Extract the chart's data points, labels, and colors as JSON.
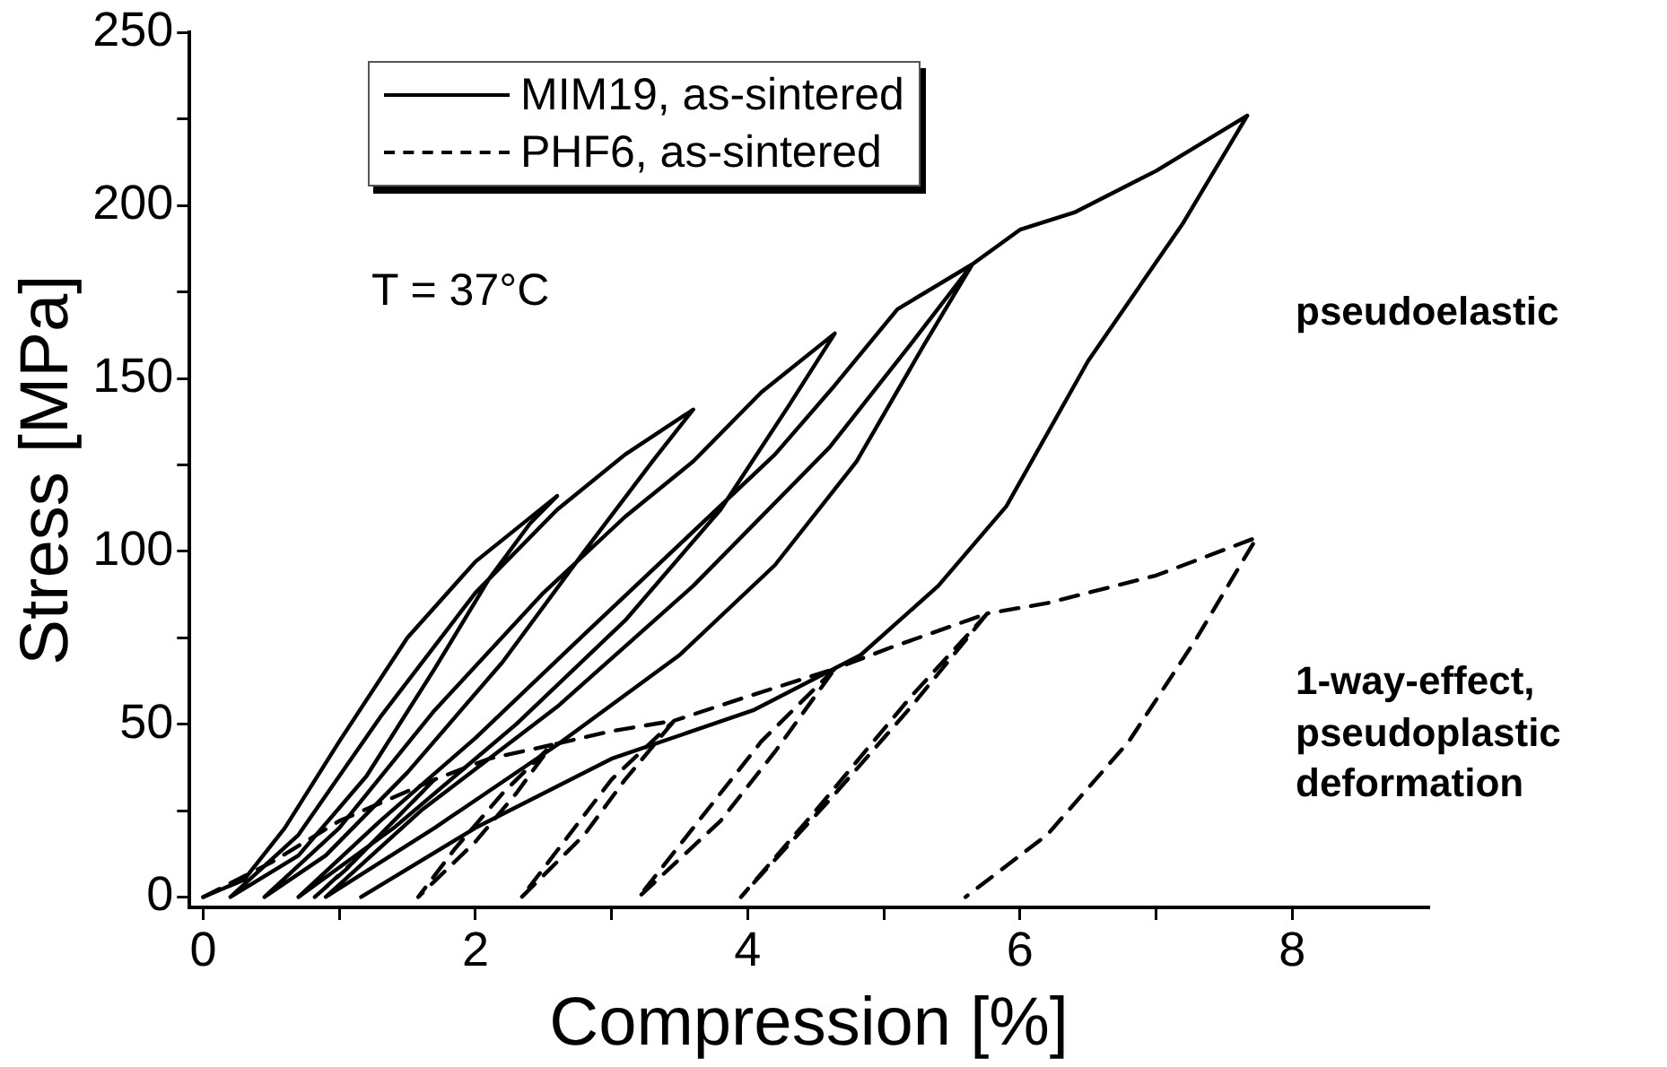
{
  "chart_data": {
    "type": "line",
    "xlabel": "Compression [%]",
    "ylabel": "Stress [MPa]",
    "xlim": [
      -0.1,
      9
    ],
    "xticks": [
      0,
      {
        "value": 1,
        "label": null
      },
      2,
      {
        "value": 3,
        "label": null
      },
      4,
      {
        "value": 5,
        "label": null
      },
      6,
      {
        "value": 7,
        "label": null
      },
      8
    ],
    "ylim": [
      -3,
      250
    ],
    "yticks": [
      0,
      {
        "value": 25,
        "label": null
      },
      50,
      {
        "value": 75,
        "label": null
      },
      100,
      {
        "value": 125,
        "label": null
      },
      150,
      {
        "value": 175,
        "label": null
      },
      200,
      {
        "value": 225,
        "label": null
      },
      250
    ],
    "grid": false,
    "legend": "top left",
    "marker": "none",
    "annotations": [
      "T = 37°C",
      "pseudoelastic",
      "1-way-effect,\npseudoplastic\ndeformation"
    ],
    "series": [
      {
        "name": "MIM19, as-sintered",
        "color": "#000000",
        "line_style": "solid",
        "x": [
          0,
          0.3,
          0.6,
          1,
          1.5,
          2,
          2.6,
          2.4,
          2.1,
          1.7,
          1.2,
          0.7,
          0.2,
          0.7,
          1.3,
          2,
          2.6,
          3.1,
          3.6,
          3.3,
          2.8,
          2.2,
          1.5,
          0.9,
          0.45,
          1,
          1.7,
          2.5,
          3.1,
          3.6,
          4.1,
          4.64,
          4.3,
          3.8,
          3.1,
          2.3,
          1.4,
          0.7,
          1.3,
          2,
          2.8,
          3.5,
          4.2,
          4.64,
          5.1,
          5.65,
          5.3,
          4.8,
          4.2,
          3.5,
          2.6,
          1.7,
          0.9,
          1.6,
          2.6,
          3.6,
          4.6,
          5.2,
          5.65,
          6,
          6.4,
          7,
          7.67,
          7.2,
          6.5,
          5.9,
          5.4,
          4.83,
          4.04,
          3,
          2,
          1.16
        ],
        "values": [
          0,
          5,
          20,
          45,
          75,
          97,
          116,
          108,
          92,
          66,
          35,
          12,
          0,
          18,
          52,
          88,
          112,
          128,
          141,
          126,
          100,
          68,
          36,
          12,
          0,
          20,
          54,
          88,
          110,
          126,
          146,
          163,
          142,
          112,
          80,
          50,
          20,
          0,
          22,
          46,
          76,
          102,
          128,
          148,
          170,
          183,
          160,
          126,
          96,
          70,
          44,
          20,
          0,
          25,
          55,
          90,
          130,
          160,
          183,
          193,
          198,
          210,
          226,
          195,
          155,
          113,
          90,
          70,
          54,
          40,
          20,
          0
        ]
      },
      {
        "name": "PHF6, as-sintered",
        "color": "#000000",
        "line_style": "dashed",
        "x": [
          0,
          0.5,
          1,
          1.7,
          1.4,
          1.1,
          0.82,
          1.05,
          1.35,
          1.7,
          2.1,
          2.56,
          2.3,
          2,
          1.58,
          1.85,
          2.2,
          2.56,
          3,
          3.46,
          3.1,
          2.8,
          2.34,
          2.65,
          3,
          3.46,
          4,
          4.64,
          4.2,
          3.8,
          3.2,
          3.6,
          4.1,
          4.64,
          5.04,
          5.76,
          5.2,
          4.6,
          3.95,
          4.5,
          5.2,
          5.76,
          6.2,
          7,
          7.74,
          7.3,
          6.8,
          6.2,
          5.6
        ],
        "values": [
          0,
          10,
          22,
          34,
          22,
          10,
          0,
          8,
          20,
          34,
          40,
          44,
          30,
          16,
          0,
          14,
          30,
          44,
          48,
          51,
          34,
          18,
          0,
          16,
          34,
          51,
          58,
          66,
          42,
          22,
          0,
          20,
          45,
          66,
          72,
          82,
          55,
          28,
          0,
          25,
          58,
          82,
          85,
          93,
          104,
          75,
          45,
          18,
          0
        ]
      }
    ]
  }
}
